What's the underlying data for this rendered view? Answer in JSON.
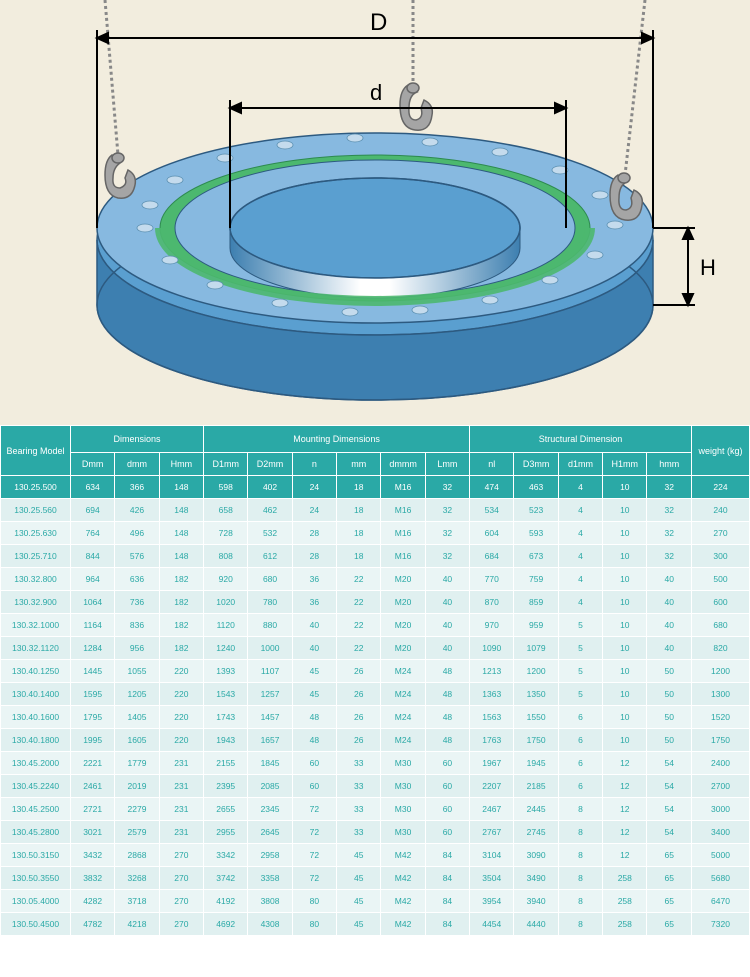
{
  "diagram": {
    "labels": {
      "D": "D",
      "d": "d",
      "H": "H"
    },
    "colors": {
      "bg": "#f2edde",
      "bearing_top": "#87b9e0",
      "bearing_side": "#5a9fd0",
      "bearing_side_dark": "#3d7fb0",
      "seal_green": "#4cb86f",
      "hole": "#c4dbed",
      "hook_gray": "#a5a5a5",
      "chain_gray": "#888888",
      "dim_line": "#000000",
      "inner_white": "#ffffff"
    }
  },
  "table": {
    "headers": {
      "model": "Bearing Model",
      "dimensions": "Dimensions",
      "mounting": "Mounting Dimensions",
      "structural": "Structural Dimension",
      "weight": "weight  (kg)",
      "cols": [
        "Dmm",
        "dmm",
        "Hmm",
        "D1mm",
        "D2mm",
        "n",
        "mm",
        "dmmm",
        "Lmm",
        "nl",
        "D3mm",
        "d1mm",
        "H1mm",
        "hmm"
      ]
    },
    "highlight_row": [
      "130.25.500",
      "634",
      "366",
      "148",
      "598",
      "402",
      "24",
      "18",
      "M16",
      "32",
      "474",
      "463",
      "4",
      "10",
      "32",
      "224"
    ],
    "rows": [
      [
        "130.25.560",
        "694",
        "426",
        "148",
        "658",
        "462",
        "24",
        "18",
        "M16",
        "32",
        "534",
        "523",
        "4",
        "10",
        "32",
        "240"
      ],
      [
        "130.25.630",
        "764",
        "496",
        "148",
        "728",
        "532",
        "28",
        "18",
        "M16",
        "32",
        "604",
        "593",
        "4",
        "10",
        "32",
        "270"
      ],
      [
        "130.25.710",
        "844",
        "576",
        "148",
        "808",
        "612",
        "28",
        "18",
        "M16",
        "32",
        "684",
        "673",
        "4",
        "10",
        "32",
        "300"
      ],
      [
        "130.32.800",
        "964",
        "636",
        "182",
        "920",
        "680",
        "36",
        "22",
        "M20",
        "40",
        "770",
        "759",
        "4",
        "10",
        "40",
        "500"
      ],
      [
        "130.32.900",
        "1064",
        "736",
        "182",
        "1020",
        "780",
        "36",
        "22",
        "M20",
        "40",
        "870",
        "859",
        "4",
        "10",
        "40",
        "600"
      ],
      [
        "130.32.1000",
        "1164",
        "836",
        "182",
        "1120",
        "880",
        "40",
        "22",
        "M20",
        "40",
        "970",
        "959",
        "5",
        "10",
        "40",
        "680"
      ],
      [
        "130.32.1120",
        "1284",
        "956",
        "182",
        "1240",
        "1000",
        "40",
        "22",
        "M20",
        "40",
        "1090",
        "1079",
        "5",
        "10",
        "40",
        "820"
      ],
      [
        "130.40.1250",
        "1445",
        "1055",
        "220",
        "1393",
        "1107",
        "45",
        "26",
        "M24",
        "48",
        "1213",
        "1200",
        "5",
        "10",
        "50",
        "1200"
      ],
      [
        "130.40.1400",
        "1595",
        "1205",
        "220",
        "1543",
        "1257",
        "45",
        "26",
        "M24",
        "48",
        "1363",
        "1350",
        "5",
        "10",
        "50",
        "1300"
      ],
      [
        "130.40.1600",
        "1795",
        "1405",
        "220",
        "1743",
        "1457",
        "48",
        "26",
        "M24",
        "48",
        "1563",
        "1550",
        "6",
        "10",
        "50",
        "1520"
      ],
      [
        "130.40.1800",
        "1995",
        "1605",
        "220",
        "1943",
        "1657",
        "48",
        "26",
        "M24",
        "48",
        "1763",
        "1750",
        "6",
        "10",
        "50",
        "1750"
      ],
      [
        "130.45.2000",
        "2221",
        "1779",
        "231",
        "2155",
        "1845",
        "60",
        "33",
        "M30",
        "60",
        "1967",
        "1945",
        "6",
        "12",
        "54",
        "2400"
      ],
      [
        "130.45.2240",
        "2461",
        "2019",
        "231",
        "2395",
        "2085",
        "60",
        "33",
        "M30",
        "60",
        "2207",
        "2185",
        "6",
        "12",
        "54",
        "2700"
      ],
      [
        "130.45.2500",
        "2721",
        "2279",
        "231",
        "2655",
        "2345",
        "72",
        "33",
        "M30",
        "60",
        "2467",
        "2445",
        "8",
        "12",
        "54",
        "3000"
      ],
      [
        "130.45.2800",
        "3021",
        "2579",
        "231",
        "2955",
        "2645",
        "72",
        "33",
        "M30",
        "60",
        "2767",
        "2745",
        "8",
        "12",
        "54",
        "3400"
      ],
      [
        "130.50.3150",
        "3432",
        "2868",
        "270",
        "3342",
        "2958",
        "72",
        "45",
        "M42",
        "84",
        "3104",
        "3090",
        "8",
        "12",
        "65",
        "5000"
      ],
      [
        "130.50.3550",
        "3832",
        "3268",
        "270",
        "3742",
        "3358",
        "72",
        "45",
        "M42",
        "84",
        "3504",
        "3490",
        "8",
        "258",
        "65",
        "5680"
      ],
      [
        "130.05.4000",
        "4282",
        "3718",
        "270",
        "4192",
        "3808",
        "80",
        "45",
        "M42",
        "84",
        "3954",
        "3940",
        "8",
        "258",
        "65",
        "6470"
      ],
      [
        "130.50.4500",
        "4782",
        "4218",
        "270",
        "4692",
        "4308",
        "80",
        "45",
        "M42",
        "84",
        "4454",
        "4440",
        "8",
        "258",
        "65",
        "7320"
      ]
    ]
  }
}
